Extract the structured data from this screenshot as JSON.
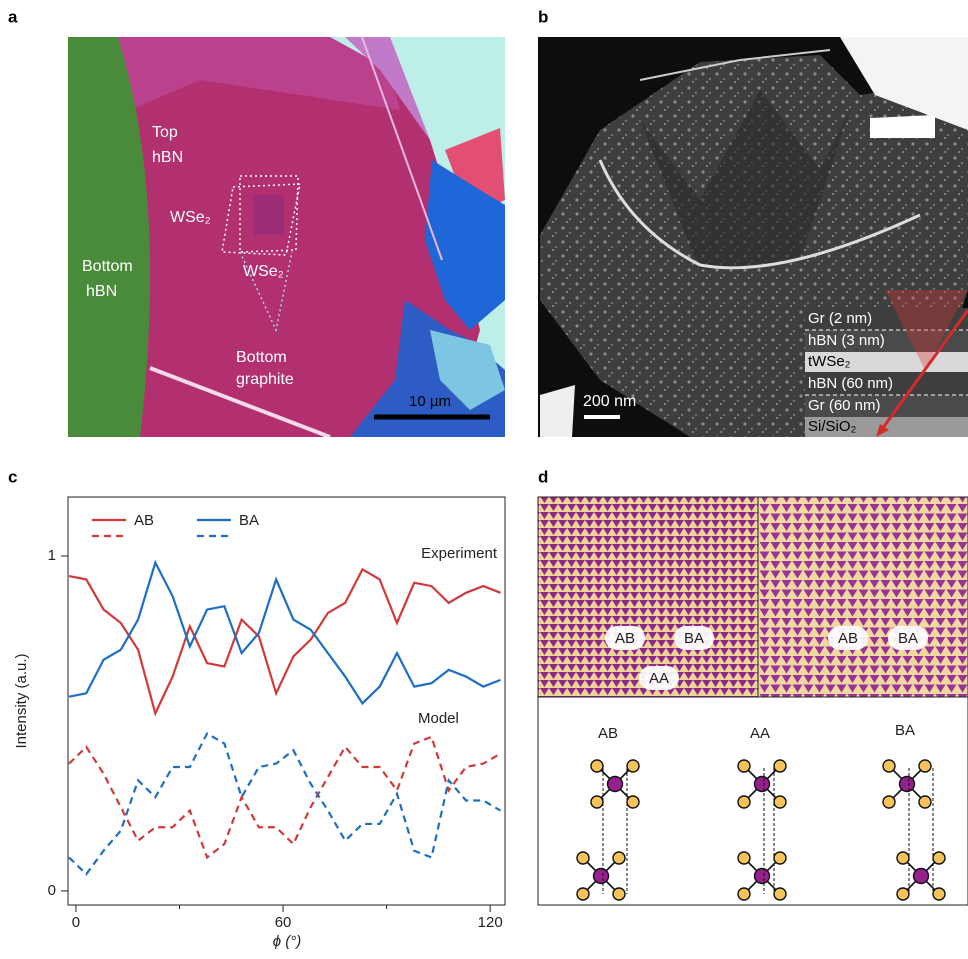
{
  "panel_labels": [
    "a",
    "b",
    "c",
    "d"
  ],
  "panel_a": {
    "labels": [
      "Top",
      "hBN",
      "WSe₂",
      "WSe₂",
      "Bottom",
      "hBN",
      "Bottom",
      "graphite"
    ],
    "scale_bar": "10 µm"
  },
  "panel_b": {
    "scale_bar": "200 nm",
    "stack": [
      "Gr (2 nm)",
      "hBN (3 nm)",
      "tWSe₂",
      "hBN (60 nm)",
      "Gr (60 nm)",
      "Si/SiO₂"
    ]
  },
  "chart_data": {
    "type": "line",
    "x_label": "ϕ (°)",
    "y_label": "Intensity (a.u.)",
    "annotations": [
      "Experiment",
      "Model"
    ],
    "x": [
      -2,
      3,
      8,
      13,
      18,
      23,
      28,
      33,
      38,
      43,
      48,
      53,
      58,
      63,
      68,
      73,
      78,
      83,
      88,
      93,
      98,
      103,
      108,
      113,
      118,
      123
    ],
    "series": [
      {
        "name": "AB",
        "color": "#d03a3a",
        "dash": "solid",
        "values": [
          0.94,
          0.93,
          0.84,
          0.8,
          0.72,
          0.53,
          0.64,
          0.79,
          0.68,
          0.67,
          0.81,
          0.76,
          0.59,
          0.7,
          0.75,
          0.83,
          0.86,
          0.96,
          0.93,
          0.8,
          0.92,
          0.91,
          0.86,
          0.89,
          0.91,
          0.89
        ]
      },
      {
        "name": "AB",
        "color": "#d03a3a",
        "dash": "dashed",
        "values": [
          0.38,
          0.43,
          0.35,
          0.25,
          0.15,
          0.19,
          0.19,
          0.24,
          0.1,
          0.14,
          0.28,
          0.19,
          0.19,
          0.14,
          0.25,
          0.34,
          0.43,
          0.37,
          0.37,
          0.3,
          0.44,
          0.46,
          0.3,
          0.37,
          0.38,
          0.41
        ]
      },
      {
        "name": "BA",
        "color": "#1c6fc4",
        "dash": "solid",
        "values": [
          0.58,
          0.59,
          0.69,
          0.72,
          0.81,
          0.98,
          0.88,
          0.73,
          0.84,
          0.85,
          0.71,
          0.77,
          0.93,
          0.81,
          0.78,
          0.71,
          0.64,
          0.56,
          0.61,
          0.71,
          0.61,
          0.62,
          0.66,
          0.64,
          0.61,
          0.63
        ]
      },
      {
        "name": "BA",
        "color": "#1c6fc4",
        "dash": "dashed",
        "values": [
          0.1,
          0.05,
          0.12,
          0.18,
          0.33,
          0.28,
          0.37,
          0.37,
          0.47,
          0.44,
          0.28,
          0.37,
          0.38,
          0.42,
          0.32,
          0.24,
          0.15,
          0.2,
          0.2,
          0.29,
          0.12,
          0.1,
          0.33,
          0.27,
          0.27,
          0.24
        ]
      }
    ],
    "xlim": [
      -2.3,
      124.3
    ],
    "xticks": [
      0,
      60,
      120
    ],
    "xminorticks": [
      30,
      90
    ],
    "ylim": [
      -0.042,
      1.176
    ],
    "yticks": [
      0,
      1
    ]
  },
  "panel_d": {
    "map_labels": [
      "AB",
      "BA",
      "AA",
      "AB",
      "BA"
    ],
    "stacking_labels": [
      "AB",
      "AA",
      "BA"
    ]
  }
}
